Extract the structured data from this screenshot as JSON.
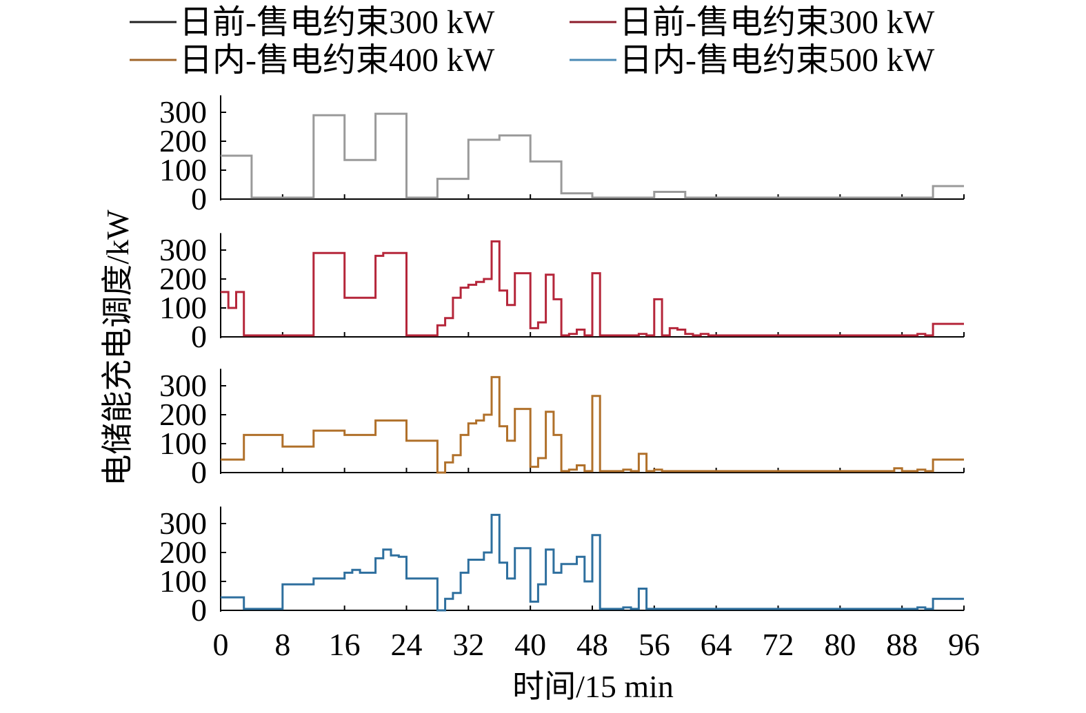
{
  "chart_data": {
    "type": "line",
    "step": true,
    "ylabel": "电储能充电调度/kW",
    "xlabel": "时间/15 min",
    "xlim": [
      0,
      96
    ],
    "ylim": [
      0,
      330
    ],
    "x_ticks": [
      "0",
      "8",
      "16",
      "24",
      "32",
      "40",
      "48",
      "56",
      "64",
      "72",
      "80",
      "88",
      "96"
    ],
    "y_ticks": [
      "0",
      "100",
      "200",
      "300"
    ],
    "legend_position": "top",
    "series": [
      {
        "name": "日前-售电约束300 kW",
        "color": "#9a9a9a",
        "legend_color": "#222222",
        "values": [
          150,
          150,
          150,
          150,
          5,
          5,
          5,
          5,
          5,
          5,
          5,
          5,
          290,
          290,
          290,
          290,
          135,
          135,
          135,
          135,
          295,
          295,
          295,
          295,
          5,
          5,
          5,
          5,
          70,
          70,
          70,
          70,
          205,
          205,
          205,
          205,
          220,
          220,
          220,
          220,
          130,
          130,
          130,
          130,
          20,
          20,
          20,
          20,
          5,
          5,
          5,
          5,
          5,
          5,
          5,
          5,
          25,
          25,
          25,
          25,
          5,
          5,
          5,
          5,
          5,
          5,
          5,
          5,
          5,
          5,
          5,
          5,
          5,
          5,
          5,
          5,
          5,
          5,
          5,
          5,
          5,
          5,
          5,
          5,
          5,
          5,
          5,
          5,
          5,
          5,
          5,
          5,
          45,
          45,
          45,
          45
        ]
      },
      {
        "name": "日前-售电约束300 kW",
        "color": "#b5263a",
        "legend_color": "#8c1c2a",
        "values": [
          155,
          100,
          155,
          5,
          5,
          5,
          5,
          5,
          5,
          5,
          5,
          5,
          290,
          290,
          290,
          290,
          135,
          135,
          135,
          135,
          280,
          290,
          290,
          290,
          5,
          5,
          5,
          5,
          40,
          65,
          135,
          170,
          180,
          190,
          200,
          330,
          160,
          110,
          220,
          220,
          30,
          50,
          215,
          130,
          5,
          10,
          25,
          5,
          220,
          5,
          5,
          5,
          5,
          5,
          10,
          5,
          130,
          5,
          30,
          25,
          10,
          5,
          10,
          5,
          5,
          5,
          5,
          5,
          5,
          5,
          5,
          5,
          5,
          5,
          5,
          5,
          5,
          5,
          5,
          5,
          5,
          5,
          5,
          5,
          5,
          5,
          5,
          5,
          5,
          5,
          10,
          5,
          45,
          45,
          45,
          45
        ]
      },
      {
        "name": "日内-售电约束400 kW",
        "color": "#b0702a",
        "legend_color": "#a0652a",
        "values": [
          45,
          45,
          45,
          130,
          130,
          130,
          130,
          130,
          90,
          90,
          90,
          90,
          145,
          145,
          145,
          145,
          130,
          130,
          130,
          130,
          180,
          180,
          180,
          180,
          110,
          110,
          110,
          110,
          0,
          35,
          60,
          130,
          170,
          180,
          200,
          330,
          160,
          110,
          220,
          220,
          20,
          50,
          210,
          130,
          5,
          10,
          25,
          5,
          265,
          5,
          5,
          5,
          10,
          5,
          65,
          5,
          10,
          5,
          5,
          5,
          5,
          5,
          5,
          5,
          5,
          5,
          5,
          5,
          5,
          5,
          5,
          5,
          5,
          5,
          5,
          5,
          5,
          5,
          5,
          5,
          5,
          5,
          5,
          5,
          5,
          5,
          5,
          15,
          5,
          5,
          10,
          5,
          45,
          45,
          45,
          45
        ]
      },
      {
        "name": "日内-售电约束500 kW",
        "color": "#2e6f9e",
        "legend_color": "#4a8ab5",
        "values": [
          45,
          45,
          45,
          5,
          5,
          5,
          5,
          5,
          90,
          90,
          90,
          90,
          110,
          110,
          110,
          110,
          130,
          140,
          130,
          130,
          180,
          210,
          190,
          185,
          110,
          110,
          110,
          110,
          0,
          40,
          60,
          130,
          175,
          175,
          200,
          330,
          165,
          110,
          215,
          215,
          30,
          90,
          210,
          130,
          160,
          160,
          185,
          100,
          260,
          5,
          5,
          5,
          10,
          5,
          75,
          5,
          5,
          5,
          5,
          5,
          5,
          5,
          5,
          5,
          5,
          5,
          5,
          5,
          5,
          5,
          5,
          5,
          5,
          5,
          5,
          5,
          5,
          5,
          5,
          5,
          5,
          5,
          5,
          5,
          5,
          5,
          5,
          5,
          5,
          5,
          10,
          5,
          40,
          40,
          40,
          40
        ]
      }
    ]
  }
}
